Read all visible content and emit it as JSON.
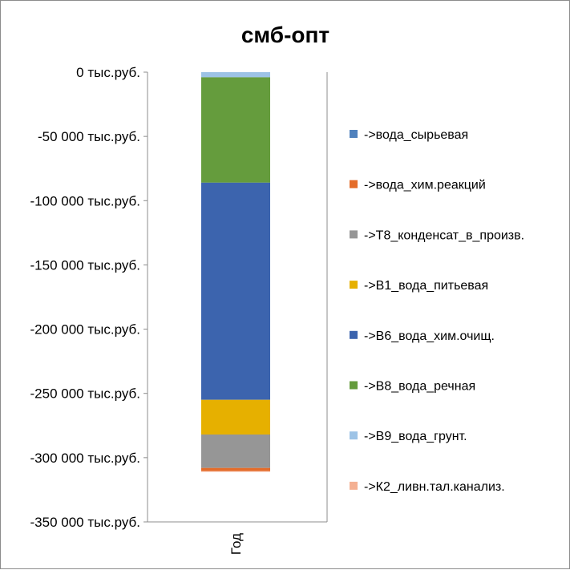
{
  "chart_data": {
    "type": "bar",
    "stacked": true,
    "title": "смб-опт",
    "categories": [
      "Год"
    ],
    "ylim": [
      -350000,
      0
    ],
    "yticks": [
      0,
      -50000,
      -100000,
      -150000,
      -200000,
      -250000,
      -300000,
      -350000
    ],
    "ytick_labels": [
      "0 тыс.руб.",
      "-50 000 тыс.руб.",
      "-100 000 тыс.руб.",
      "-150 000 тыс.руб.",
      "-200 000 тыс.руб.",
      "-250 000 тыс.руб.",
      "-300 000 тыс.руб.",
      "-350 000 тыс.руб."
    ],
    "grid": false,
    "legend_position": "right",
    "series": [
      {
        "name": "->вода_сырьевая",
        "color": "#4F81BD",
        "values": [
          0
        ]
      },
      {
        "name": "->вода_хим.реакций",
        "color": "#E46C2A",
        "values": [
          -2500
        ]
      },
      {
        "name": "->Т8_конденсат_в_произв.",
        "color": "#969696",
        "values": [
          -26000
        ]
      },
      {
        "name": "->В1_вода_питьевая",
        "color": "#E6B000",
        "values": [
          -27000
        ]
      },
      {
        "name": "->В6_вода_хим.очищ.",
        "color": "#3C64AE",
        "values": [
          -169000
        ]
      },
      {
        "name": "->В8_вода_речная",
        "color": "#659C3D",
        "values": [
          -82000
        ]
      },
      {
        "name": "->В9_вода_грунт.",
        "color": "#9DC3E6",
        "values": [
          -4000
        ]
      },
      {
        "name": "->К2_ливн.тал.канализ.",
        "color": "#F4B092",
        "values": [
          -500
        ]
      }
    ]
  }
}
